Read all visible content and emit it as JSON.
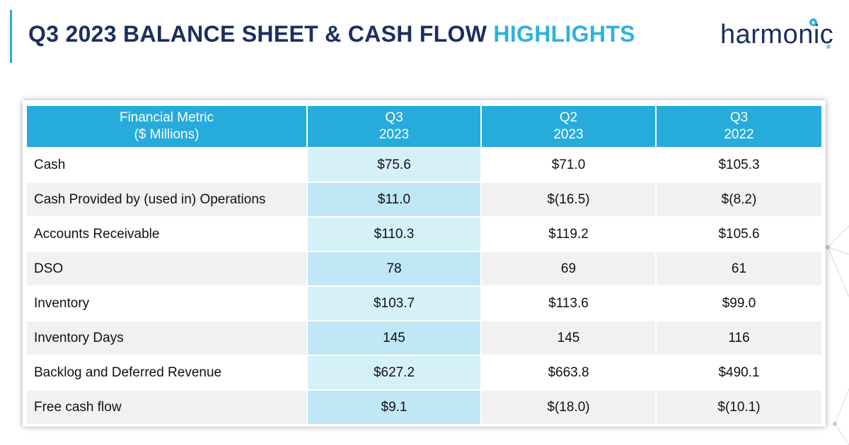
{
  "slide": {
    "title_main": "Q3 2023 BALANCE SHEET & CASH FLOW ",
    "title_highlight": "HIGHLIGHTS",
    "logo_text": "harmonic",
    "logo_reg": "®"
  },
  "table": {
    "headers": [
      {
        "line1": "Financial Metric",
        "line2": "($ Millions)"
      },
      {
        "line1": "Q3",
        "line2": "2023"
      },
      {
        "line1": "Q2",
        "line2": "2023"
      },
      {
        "line1": "Q3",
        "line2": "2022"
      }
    ],
    "rows": [
      {
        "metric": "Cash",
        "q3_2023": "$75.6",
        "q2_2023": "$71.0",
        "q3_2022": "$105.3"
      },
      {
        "metric": "Cash Provided by (used in) Operations",
        "q3_2023": "$11.0",
        "q2_2023": "$(16.5)",
        "q3_2022": "$(8.2)"
      },
      {
        "metric": "Accounts Receivable",
        "q3_2023": "$110.3",
        "q2_2023": "$119.2",
        "q3_2022": "$105.6"
      },
      {
        "metric": "DSO",
        "q3_2023": "78",
        "q2_2023": "69",
        "q3_2022": "61"
      },
      {
        "metric": "Inventory",
        "q3_2023": "$103.7",
        "q2_2023": "$113.6",
        "q3_2022": "$99.0"
      },
      {
        "metric": "Inventory Days",
        "q3_2023": "145",
        "q2_2023": "145",
        "q3_2022": "116"
      },
      {
        "metric": "Backlog and Deferred Revenue",
        "q3_2023": "$627.2",
        "q2_2023": "$663.8",
        "q3_2022": "$490.1"
      },
      {
        "metric": "Free cash flow",
        "q3_2023": "$9.1",
        "q2_2023": "$(18.0)",
        "q3_2022": "$(10.1)"
      }
    ]
  },
  "colors": {
    "title_navy": "#1b2f5e",
    "title_highlight": "#2fb1e0",
    "header_bg": "#27abdb",
    "q3_col_light": "#d6f0f8",
    "q3_col_dark": "#c0e7f5",
    "row_alt": "#f1f1f1"
  }
}
